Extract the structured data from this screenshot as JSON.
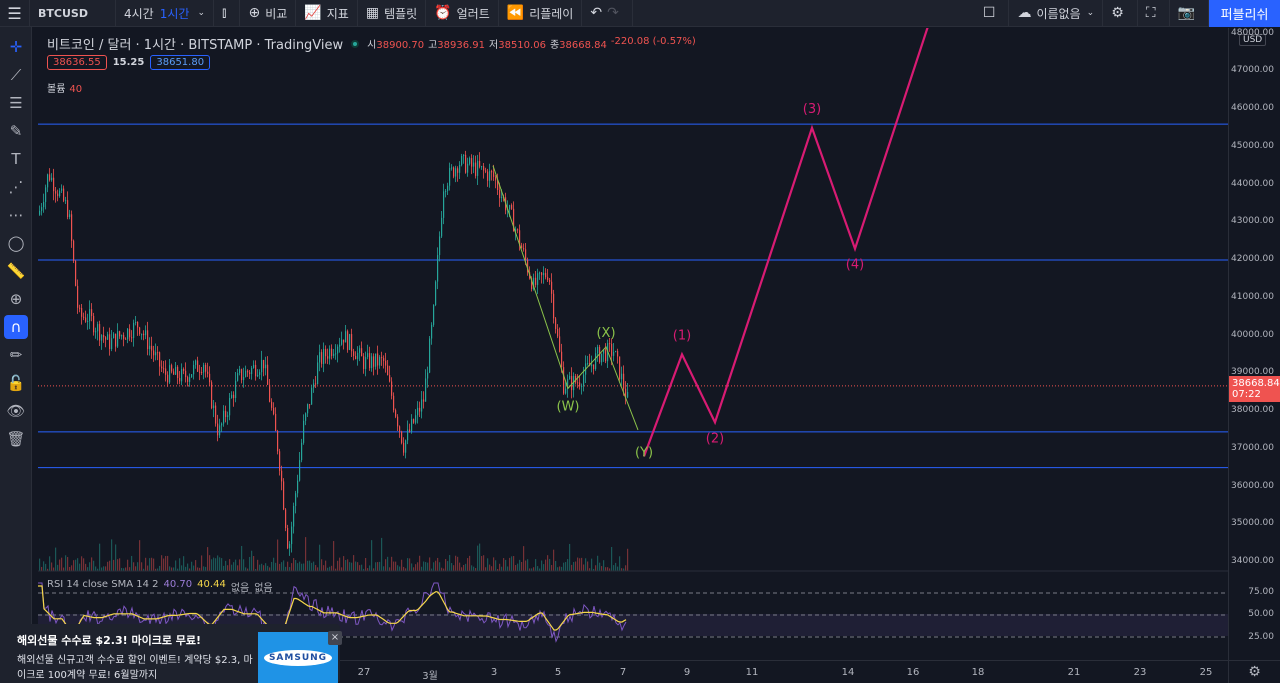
{
  "toolbar": {
    "menu_icon": "hamburger-icon",
    "symbol": "BTCUSD",
    "interval_4h": "4시간",
    "interval_1h": "1시간",
    "compare": "비교",
    "indicators": "지표",
    "templates": "템플릿",
    "alert": "얼러트",
    "replay": "리플레이",
    "layout_name": "이름없음",
    "publish": "퍼블리쉬"
  },
  "legend": {
    "title": "비트코인 / 달러 · 1시간 · BITSTAMP · TradingView",
    "open_k": "시",
    "open": "38900.70",
    "high_k": "고",
    "high": "38936.91",
    "low_k": "저",
    "low": "38510.06",
    "close_k": "종",
    "close": "38668.84",
    "change": "-220.08 (-0.57%)",
    "bid": "38636.55",
    "spread": "15.25",
    "ask": "38651.80",
    "volume_label": "볼륨",
    "volume": "40",
    "rsi_label": "RSI 14 close SMA 14 2",
    "rsi_value": "40.70",
    "rsi_sma": "40.44",
    "rsi_na1": "없음",
    "rsi_na2": "없음"
  },
  "price_axis": {
    "currency": "USD",
    "current_price": "38668.84",
    "countdown": "07:22",
    "labels": [
      "48000.00",
      "47000.00",
      "46000.00",
      "45000.00",
      "44000.00",
      "43000.00",
      "42000.00",
      "41000.00",
      "40000.00",
      "39000.00",
      "38000.00",
      "37000.00",
      "36000.00",
      "35000.00",
      "34000.00"
    ],
    "rsi_labels": [
      "75.00",
      "50.00",
      "25.00"
    ]
  },
  "time_axis": [
    "27",
    "3월",
    "3",
    "5",
    "7",
    "9",
    "11",
    "14",
    "16",
    "18",
    "21",
    "23",
    "25"
  ],
  "colors": {
    "accent": "#2962ff",
    "up": "#26a69a",
    "down": "#ef5350",
    "wave": "#d81b73",
    "corrective": "#8bc34a",
    "rsi": "#7e57c2",
    "rsi_sma": "#f5d74a"
  },
  "chart_data": {
    "type": "candlestick",
    "ylim": [
      33700,
      48000
    ],
    "horizontal_levels": [
      45600,
      42000,
      37450,
      36500
    ],
    "projection_wave": [
      {
        "label": "(Y)",
        "price": 36800
      },
      {
        "label": "(1)",
        "price": 39500
      },
      {
        "label": "(2)",
        "price": 37700
      },
      {
        "label": "(3)",
        "price": 45500
      },
      {
        "label": "(4)",
        "price": 42300
      }
    ],
    "corrective_wave": [
      {
        "label": "(W)",
        "price": 38600
      },
      {
        "label": "(X)",
        "price": 39700
      },
      {
        "label": "(Y)",
        "price": 37500
      }
    ]
  },
  "ad": {
    "title": "해외선물 수수료 $2.3! 마이크로 무료!",
    "body": "해외선물 신규고객 수수료 할인 이벤트! 계약당 $2.3, 마이크로 100계약 무료! 6월말까지",
    "logo": "SAMSUNG",
    "close": "×"
  }
}
